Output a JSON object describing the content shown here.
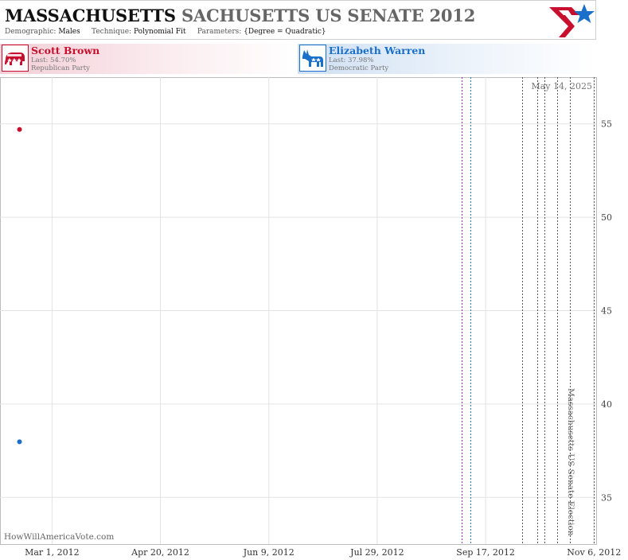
{
  "header": {
    "title_main": "MASSACHUSETTS",
    "title_sub": "SACHUSETTS US SENATE 2012",
    "demographic_label": "Demographic:",
    "demographic_value": "Males",
    "technique_label": "Technique:",
    "technique_value": "Polynomial Fit",
    "parameters_label": "Parameters:",
    "parameters_value": "{Degree = Quadratic}"
  },
  "candidates": [
    {
      "name": "Scott Brown",
      "last": "Last: 54.70%",
      "party": "Republican Party",
      "color": "#c8102e",
      "icon": "elephant-icon"
    },
    {
      "name": "Elizabeth Warren",
      "last": "Last: 37.98%",
      "party": "Democratic Party",
      "color": "#1a6fc9",
      "icon": "donkey-icon"
    }
  ],
  "watermark": "HowWillAmericaVote.com",
  "chart_data": {
    "type": "scatter",
    "date_label": "May 14, 2025",
    "x_ticks": [
      "Mar 1, 2012",
      "Apr 20, 2012",
      "Jun 9, 2012",
      "Jul 29, 2012",
      "Sep 17, 2012",
      "Nov 6, 2012"
    ],
    "x_tick_dates": [
      "2012-03-01",
      "2012-04-20",
      "2012-06-09",
      "2012-07-29",
      "2012-09-17",
      "2012-11-06"
    ],
    "xlim": [
      "2012-02-06",
      "2012-11-07"
    ],
    "y_ticks": [
      35,
      40,
      45,
      50,
      55
    ],
    "ylim": [
      32.5,
      57.5
    ],
    "grid": true,
    "series": [
      {
        "name": "Scott Brown",
        "color": "#c8102e",
        "points": [
          {
            "x": "2012-02-15",
            "y": 54.7
          }
        ]
      },
      {
        "name": "Elizabeth Warren",
        "color": "#1a6fc9",
        "points": [
          {
            "x": "2012-02-15",
            "y": 37.98
          }
        ]
      }
    ],
    "event_lines": [
      {
        "x": "2012-09-06",
        "color": "#9b2fae"
      },
      {
        "x": "2012-09-10",
        "color": "#2a7fa8"
      },
      {
        "x": "2012-10-04",
        "color": "#555555"
      },
      {
        "x": "2012-10-11",
        "color": "#555555"
      },
      {
        "x": "2012-10-14",
        "color": "#555555"
      },
      {
        "x": "2012-10-20",
        "color": "#555555"
      },
      {
        "x": "2012-10-26",
        "color": "#555555"
      }
    ],
    "election": {
      "x": "2012-11-06",
      "label": "Massachusetts US Senate Election"
    }
  }
}
